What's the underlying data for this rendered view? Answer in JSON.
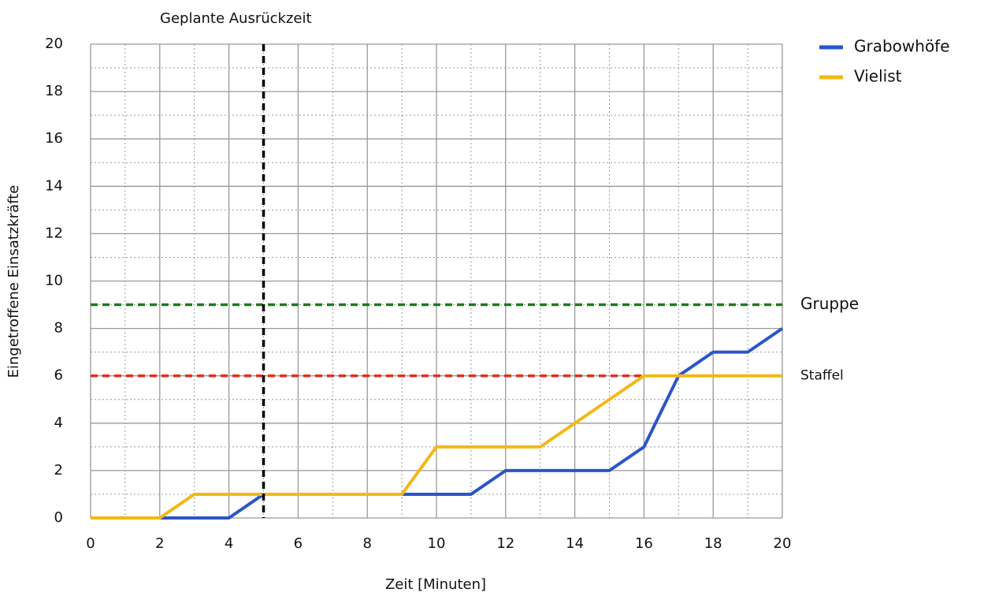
{
  "chart_data": {
    "type": "line",
    "xlabel": "Zeit [Minuten]",
    "ylabel": "Eingetroffene Einsatzkräfte",
    "x": [
      0,
      1,
      2,
      3,
      4,
      5,
      6,
      7,
      8,
      9,
      10,
      11,
      12,
      13,
      14,
      15,
      16,
      17,
      18,
      19,
      20
    ],
    "series": [
      {
        "name": "Grabowhöfe",
        "color": "#2b55c8",
        "values": [
          0,
          0,
          0,
          0,
          0,
          1,
          1,
          1,
          1,
          1,
          1,
          1,
          2,
          2,
          2,
          2,
          3,
          6,
          7,
          7,
          8
        ]
      },
      {
        "name": "Vielist",
        "color": "#f2b817",
        "values": [
          0,
          0,
          0,
          1,
          1,
          1,
          1,
          1,
          1,
          1,
          3,
          3,
          3,
          3,
          4,
          5,
          6,
          6,
          6,
          6,
          6
        ]
      }
    ],
    "xlim": [
      0,
      20
    ],
    "ylim": [
      0,
      20
    ],
    "xticks": [
      0,
      2,
      4,
      6,
      8,
      10,
      12,
      14,
      16,
      18,
      20
    ],
    "yticks": [
      0,
      2,
      4,
      6,
      8,
      10,
      12,
      14,
      16,
      18,
      20
    ],
    "xminor_ticks": [
      1,
      3,
      5,
      7,
      9,
      11,
      13,
      15,
      17,
      19
    ],
    "yminor_ticks": [
      1,
      3,
      5,
      7,
      9,
      11,
      13,
      15,
      17,
      19
    ],
    "grid": true,
    "legend": "upper right",
    "reference_lines": [
      {
        "axis": "y",
        "value": 9,
        "label": "Gruppe",
        "color": "#1d7a1d"
      },
      {
        "axis": "y",
        "value": 6,
        "label": "Staffel",
        "color": "#e0301e"
      },
      {
        "axis": "x",
        "value": 5,
        "label": "Geplante Ausrückzeit",
        "color": "#000000"
      }
    ]
  }
}
